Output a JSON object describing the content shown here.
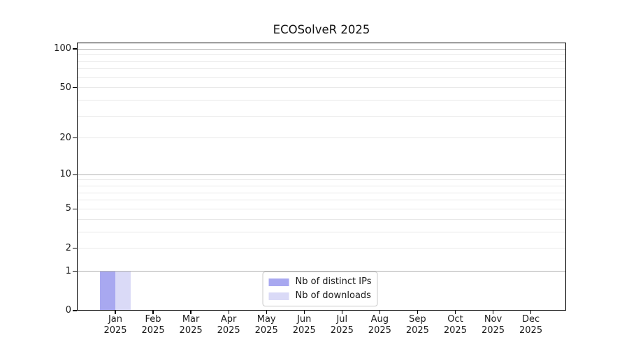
{
  "title": "ECOSolveR 2025",
  "chart_data": {
    "type": "bar",
    "title": "ECOSolveR 2025",
    "months": [
      "Jan",
      "Feb",
      "Mar",
      "Apr",
      "May",
      "Jun",
      "Jul",
      "Aug",
      "Sep",
      "Oct",
      "Nov",
      "Dec"
    ],
    "year": "2025",
    "categories": [
      "Jan 2025",
      "Feb 2025",
      "Mar 2025",
      "Apr 2025",
      "May 2025",
      "Jun 2025",
      "Jul 2025",
      "Aug 2025",
      "Sep 2025",
      "Oct 2025",
      "Nov 2025",
      "Dec 2025"
    ],
    "series": [
      {
        "name": "Nb of distinct IPs",
        "slug": "distinct-ips",
        "color": "#a8a8f0",
        "values": [
          1,
          0,
          0,
          0,
          0,
          0,
          0,
          0,
          0,
          0,
          0,
          0
        ]
      },
      {
        "name": "Nb of downloads",
        "slug": "downloads",
        "color": "#dadaf7",
        "values": [
          1,
          0,
          0,
          0,
          0,
          0,
          0,
          0,
          0,
          0,
          0,
          0
        ]
      }
    ],
    "yscale": "log1p",
    "ylim": [
      0,
      112
    ],
    "ytick_values": [
      100,
      50,
      20,
      10,
      5,
      2,
      1,
      0
    ],
    "xlabel": "",
    "ylabel": "",
    "grid": {
      "major_values": [
        100,
        10,
        1
      ],
      "minor_values": [
        90,
        80,
        70,
        60,
        50,
        40,
        30,
        20,
        9,
        8,
        7,
        6,
        5,
        4,
        3,
        2
      ],
      "major_color": "#b0b0b0",
      "minor_color": "#e8e8e8"
    },
    "legend": {
      "position": "lower center",
      "items": [
        "Nb of distinct IPs",
        "Nb of downloads"
      ]
    },
    "colors": {
      "background": "#ffffff",
      "spine": "#000000",
      "text": "#1a1a1a",
      "bar_distinct_ips": "#a8a8f0",
      "bar_downloads": "#dadaf7",
      "legend_border": "#c9c9c9"
    }
  }
}
